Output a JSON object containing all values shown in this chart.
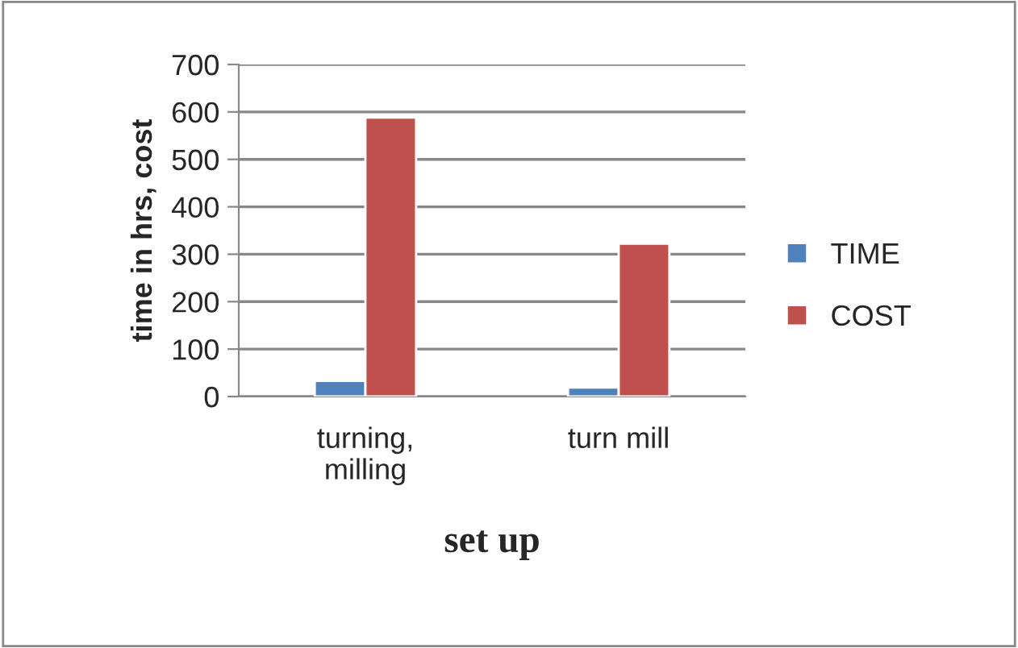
{
  "chart_data": {
    "type": "bar",
    "xlabel": "set up",
    "ylabel": "time in hrs, cost",
    "categories": [
      "turning,\nmilling",
      "turn mill"
    ],
    "series": [
      {
        "name": "TIME",
        "color": "#4f81bd",
        "values": [
          33,
          19
        ]
      },
      {
        "name": "COST",
        "color": "#c0504d",
        "values": [
          588,
          322
        ]
      }
    ],
    "ylim": [
      0,
      700
    ],
    "yticks": [
      0,
      100,
      200,
      300,
      400,
      500,
      600,
      700
    ],
    "grid": "y",
    "legend": "right"
  }
}
